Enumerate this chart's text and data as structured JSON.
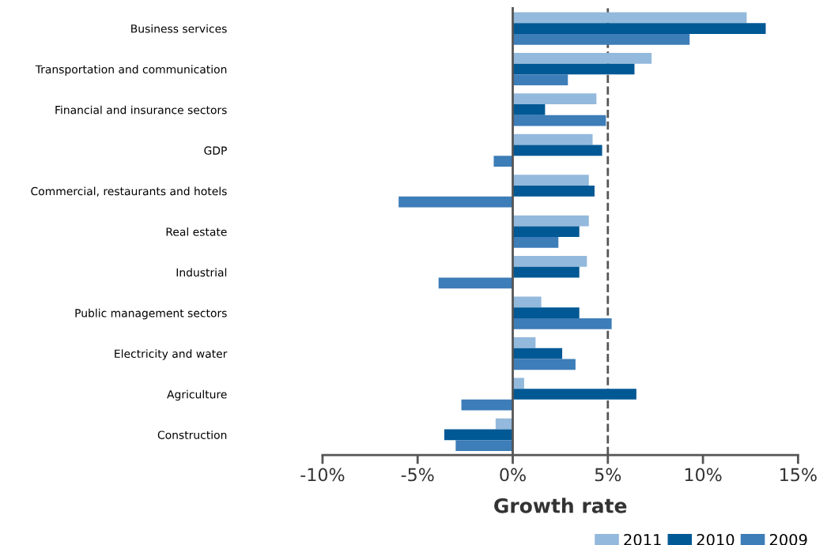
{
  "chart_data": {
    "type": "bar",
    "orientation": "horizontal",
    "xlabel": "Growth rate",
    "categories": [
      "Business services",
      "Transportation and communication",
      "Financial and insurance sectors",
      "GDP",
      "Commercial, restaurants and hotels",
      "Real estate",
      "Industrial",
      "Public management sectors",
      "Electricity and water",
      "Agriculture",
      "Construction"
    ],
    "series": [
      {
        "name": "2011",
        "color": "#93b9dc",
        "values": [
          12.3,
          7.3,
          4.4,
          4.2,
          4.0,
          4.0,
          3.9,
          1.5,
          1.2,
          0.6,
          -0.9
        ]
      },
      {
        "name": "2010",
        "color": "#005894",
        "values": [
          13.3,
          6.4,
          1.7,
          4.7,
          4.3,
          3.5,
          3.5,
          3.5,
          2.6,
          6.5,
          -3.6
        ]
      },
      {
        "name": "2009",
        "color": "#3d7db8",
        "values": [
          9.3,
          2.9,
          4.9,
          -1.0,
          -6.0,
          2.4,
          -3.9,
          5.2,
          3.3,
          -2.7,
          -3.0
        ]
      }
    ],
    "xlim": [
      -10,
      15
    ],
    "xticks": [
      {
        "value": -10,
        "label": "-10%"
      },
      {
        "value": -5,
        "label": "-5%"
      },
      {
        "value": 0,
        "label": "0%"
      },
      {
        "value": 5,
        "label": "5%"
      },
      {
        "value": 10,
        "label": "10%"
      },
      {
        "value": 15,
        "label": "15%"
      }
    ],
    "ref_lines": [
      {
        "axis": "x",
        "value": 5,
        "color": "#555555",
        "line_style": "dashed"
      }
    ],
    "grid": false,
    "legend": "bottom right"
  }
}
